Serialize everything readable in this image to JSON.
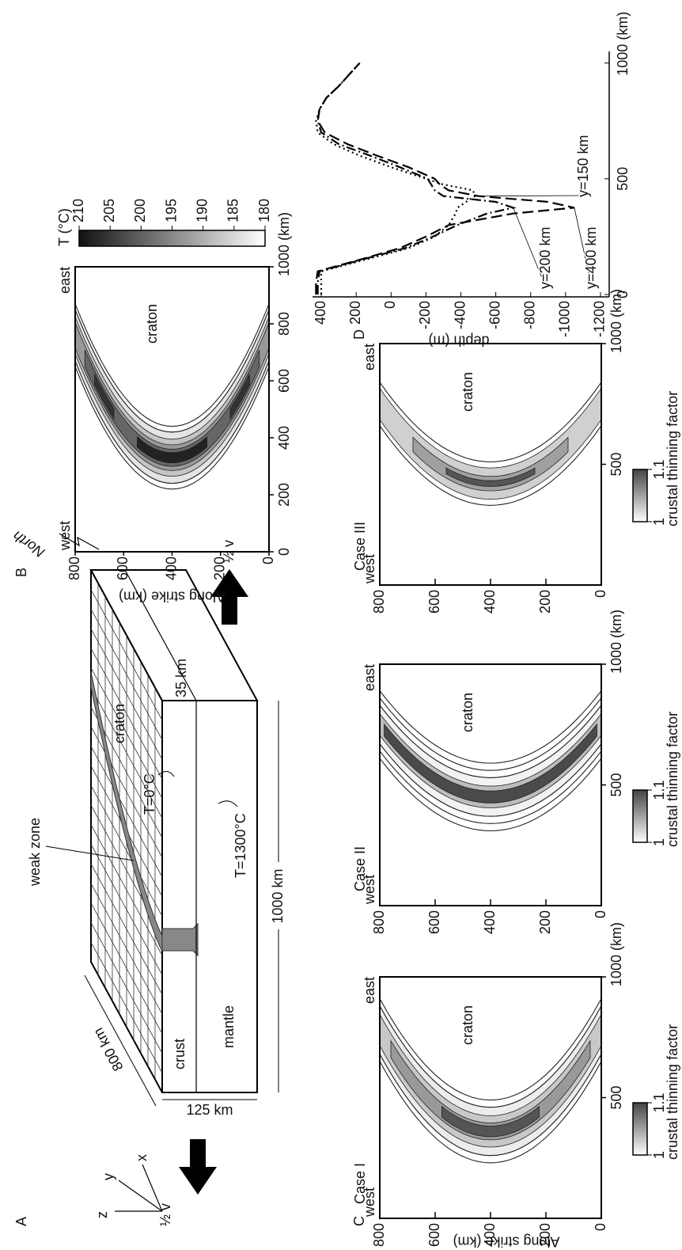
{
  "panel_labels": [
    "A",
    "B",
    "C",
    "D"
  ],
  "panel_a": {
    "weak_zone": "weak zone",
    "craton": "craton",
    "north": "North",
    "t_surface": "T=0°C",
    "t_base": "T=1300°C",
    "crust": "crust",
    "mantle": "mantle",
    "velocity_left": "½ v",
    "velocity_right": "½ v",
    "length_y": "800 km",
    "depth": "125 km",
    "crust_thickness": "35 km",
    "length_x": "1000 km",
    "axis_z": "z",
    "axis_y": "y",
    "axis_x": "x"
  },
  "panel_b": {
    "west": "west",
    "east": "east",
    "region": "craton",
    "y_label": "Along strike (km)",
    "xlim": [
      0,
      1000
    ],
    "ylim": [
      0,
      800
    ],
    "xticks": [
      0,
      200,
      400,
      600,
      800,
      {
        "value": 1000,
        "label": "1000 (km)"
      }
    ],
    "yticks": [
      0,
      200,
      400,
      600,
      800
    ],
    "colorbar_title": "T (°C)",
    "colorbar_ticks": [
      210,
      205,
      200,
      195,
      190,
      185,
      180
    ]
  },
  "panel_c": {
    "y_label": "Along strike (km)",
    "cases": [
      {
        "title": "Case I",
        "west": "west",
        "east": "east",
        "region": "craton",
        "xlim": [
          0,
          1000
        ],
        "ylim": [
          0,
          800
        ],
        "xticks": [
          500,
          {
            "value": 1000,
            "label": "1000 (km)"
          }
        ],
        "yticks": [
          0,
          200,
          400,
          600,
          800
        ],
        "colorbar_ticks": [
          1,
          1.1
        ],
        "colorbar_label": "crustal thinning factor"
      },
      {
        "title": "Case II",
        "west": "west",
        "east": "east",
        "region": "craton",
        "xlim": [
          0,
          1000
        ],
        "ylim": [
          0,
          800
        ],
        "xticks": [
          500,
          {
            "value": 1000,
            "label": "1000 (km)"
          }
        ],
        "yticks": [
          0,
          200,
          400,
          600,
          800
        ],
        "colorbar_ticks": [
          1,
          1.1
        ],
        "colorbar_label": "crustal thinning factor"
      },
      {
        "title": "Case III",
        "west": "west",
        "east": "east",
        "region": "craton",
        "xlim": [
          0,
          1000
        ],
        "ylim": [
          0,
          800
        ],
        "xticks": [
          500,
          {
            "value": 1000,
            "label": "1000 (km)"
          }
        ],
        "yticks": [
          0,
          200,
          400,
          600,
          800
        ],
        "colorbar_ticks": [
          1,
          1.1
        ],
        "colorbar_label": "crustal thinning factor"
      }
    ]
  },
  "chart_data": {
    "type": "line",
    "y_label": "depth (m)",
    "x": [
      0,
      50,
      100,
      150,
      200,
      250,
      300,
      350,
      375,
      400,
      425,
      450,
      475,
      500,
      550,
      600,
      650,
      700,
      750,
      800,
      850,
      900,
      950,
      1000
    ],
    "xlim": [
      0,
      1050
    ],
    "ylim": [
      -1250,
      450
    ],
    "xticks": [
      0,
      500,
      {
        "value": 1000,
        "label": "1000 (km)"
      }
    ],
    "yticks": [
      400,
      200,
      0,
      -200,
      -400,
      -600,
      -800,
      -1000,
      -1200
    ],
    "series": [
      {
        "name": "y=150 km",
        "color": "#000000",
        "style": "dotted",
        "values": [
          400,
          400,
          400,
          150,
          -100,
          -250,
          -330,
          -370,
          -380,
          -430,
          -480,
          -470,
          -300,
          -200,
          0,
          180,
          330,
          420,
          430,
          410,
          370,
          300,
          240,
          180
        ]
      },
      {
        "name": "y=200 km",
        "color": "#000000",
        "style": "dashdot",
        "values": [
          420,
          420,
          410,
          170,
          -80,
          -240,
          -380,
          -550,
          -700,
          -600,
          -300,
          -250,
          -230,
          -210,
          -50,
          120,
          300,
          400,
          420,
          410,
          370,
          300,
          240,
          180
        ]
      },
      {
        "name": "y=400 km",
        "color": "#000000",
        "style": "dashed",
        "values": [
          430,
          430,
          420,
          180,
          -50,
          -200,
          -330,
          -700,
          -1050,
          -900,
          -500,
          -330,
          -280,
          -250,
          -100,
          80,
          250,
          380,
          420,
          410,
          370,
          300,
          240,
          180
        ]
      }
    ]
  }
}
